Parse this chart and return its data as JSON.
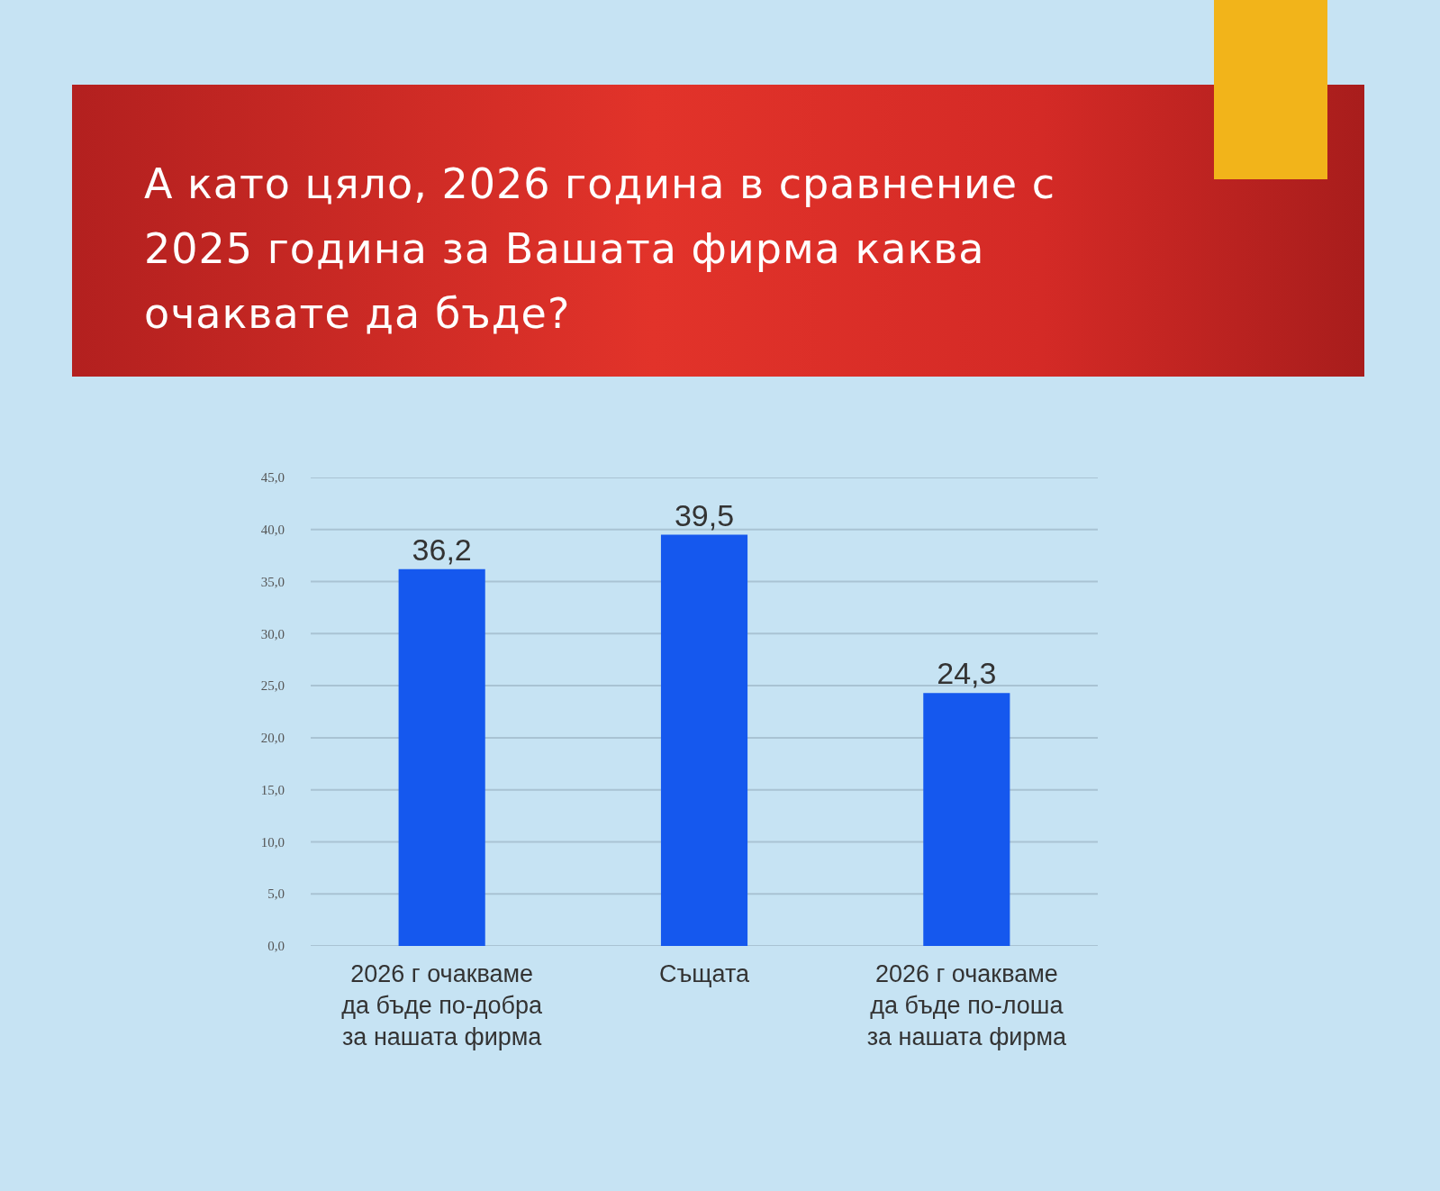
{
  "chart_data": {
    "type": "bar",
    "title": "А като цяло, 2026 година в сравнение с 2025 година за Вашата фирма каква очаквате да бъде?",
    "categories": [
      "2026 г очакваме да бъде по-добра за нашата фирма",
      "Същата",
      "2026 г очакваме да бъде по-лоша за нашата фирма"
    ],
    "values": [
      36.2,
      39.5,
      24.3
    ],
    "value_labels": [
      "36,2",
      "39,5",
      "24,3"
    ],
    "color": "#1558ee",
    "ylim": [
      0,
      45
    ],
    "yticks": [
      {
        "value": 0,
        "label": "0,0"
      },
      {
        "value": 5,
        "label": "5,0"
      },
      {
        "value": 10,
        "label": "10,0"
      },
      {
        "value": 15,
        "label": "15,0"
      },
      {
        "value": 20,
        "label": "20,0"
      },
      {
        "value": 25,
        "label": "25,0"
      },
      {
        "value": 30,
        "label": "30,0"
      },
      {
        "value": 35,
        "label": "35,0"
      },
      {
        "value": 40,
        "label": "40,0"
      },
      {
        "value": 45,
        "label": "45,0"
      }
    ],
    "grid": "y"
  }
}
